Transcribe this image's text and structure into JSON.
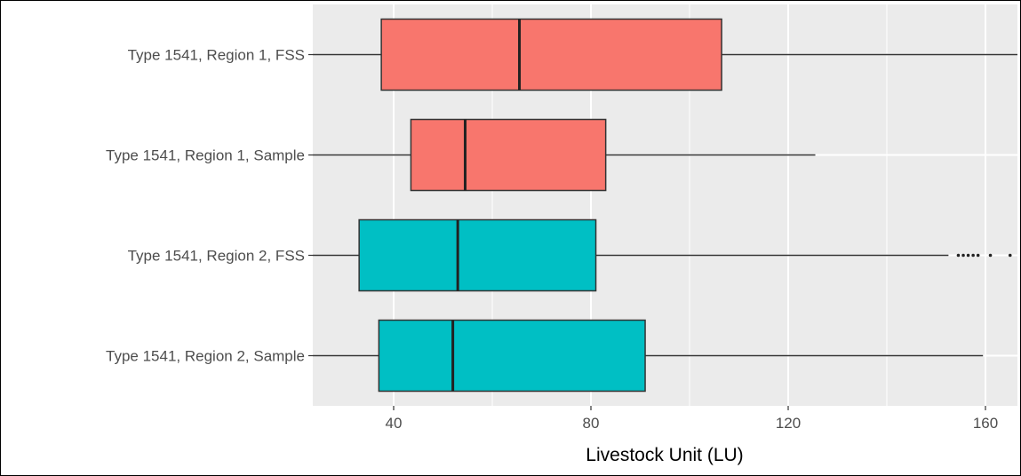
{
  "chart_data": {
    "type": "boxplot",
    "orientation": "horizontal",
    "title": "",
    "xlabel": "Livestock Unit (LU)",
    "ylabel": "",
    "xlim": [
      24,
      168
    ],
    "x_ticks": [
      40,
      80,
      120,
      160
    ],
    "grid": true,
    "legend": "none",
    "series": [
      {
        "name": "Type 1541, Region 1, FSS",
        "color": "#F8766D",
        "whisker_low": 5,
        "q1": 37.5,
        "median": 65.5,
        "q3": 106.5,
        "whisker_high": 168,
        "outliers": []
      },
      {
        "name": "Type 1541, Region 1, Sample",
        "color": "#F8766D",
        "whisker_low": 10,
        "q1": 43.5,
        "median": 54.5,
        "q3": 83,
        "whisker_high": 125.5,
        "outliers": []
      },
      {
        "name": "Type 1541, Region 2, FSS",
        "color": "#00BFC4",
        "whisker_low": 5,
        "q1": 33,
        "median": 53,
        "q3": 81,
        "whisker_high": 152.5,
        "outliers": [
          154.5,
          155.5,
          156.5,
          157.5,
          158.5,
          161,
          165
        ]
      },
      {
        "name": "Type 1541, Region 2, Sample",
        "color": "#00BFC4",
        "whisker_low": 10,
        "q1": 37,
        "median": 52,
        "q3": 91,
        "whisker_high": 159.5,
        "outliers": []
      }
    ]
  }
}
